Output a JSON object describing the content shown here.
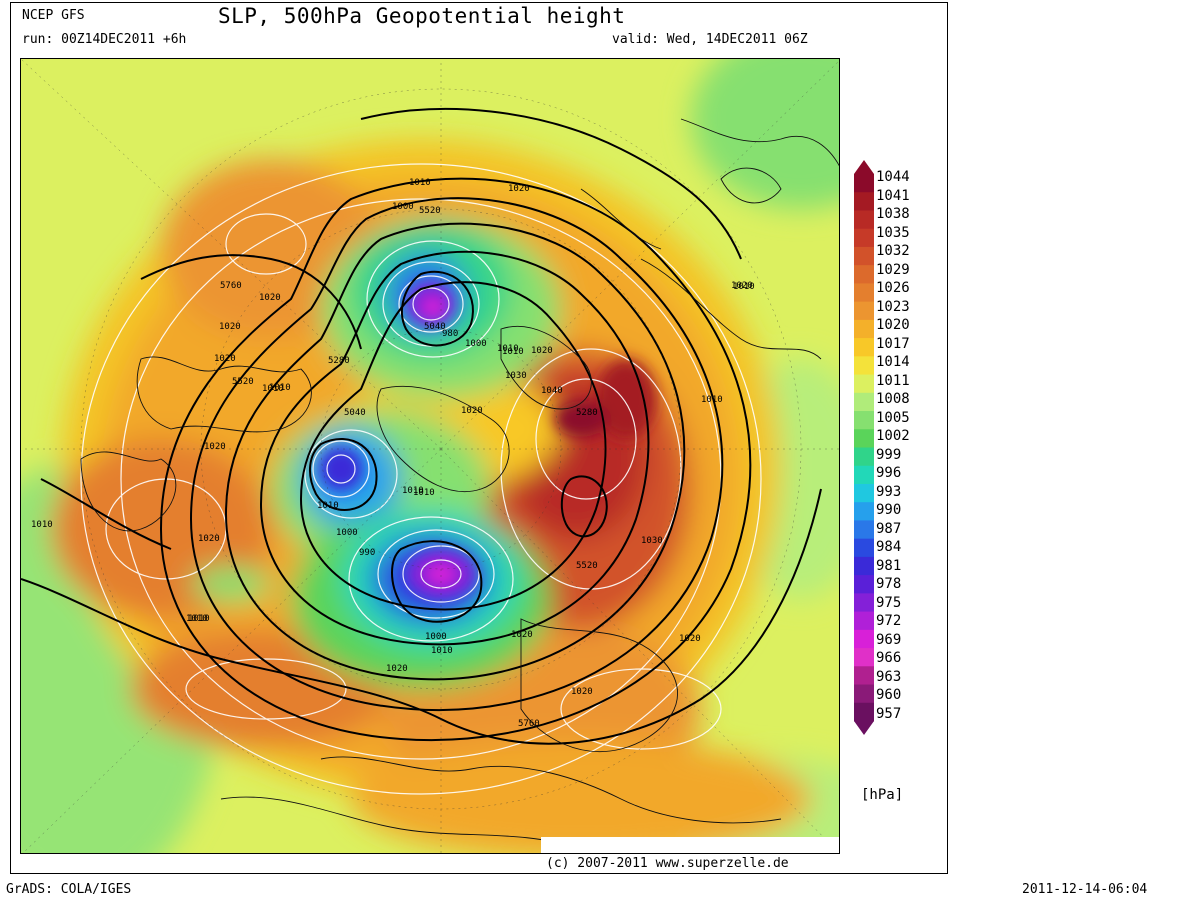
{
  "header": {
    "model": "NCEP GFS",
    "title": "SLP, 500hPa Geopotential height",
    "run": "run: 00Z14DEC2011 +6h",
    "valid": "valid: Wed, 14DEC2011 06Z"
  },
  "footer": {
    "copyright": "(c) 2007-2011 www.superzelle.de",
    "software": "GrADS: COLA/IGES",
    "timestamp": "2011-12-14-06:04"
  },
  "colorbar": {
    "unit": "[hPa]",
    "levels": [
      "1044",
      "1041",
      "1038",
      "1035",
      "1032",
      "1029",
      "1026",
      "1023",
      "1020",
      "1017",
      "1014",
      "1011",
      "1008",
      "1005",
      "1002",
      "999",
      "996",
      "993",
      "990",
      "987",
      "984",
      "981",
      "978",
      "975",
      "972",
      "969",
      "966",
      "963",
      "960",
      "957"
    ],
    "colors": [
      "#8b0a2a",
      "#a41a23",
      "#b82a25",
      "#c63a28",
      "#d2522a",
      "#dc6a2c",
      "#e47f2e",
      "#ec9530",
      "#f4b02a",
      "#f8c828",
      "#f4e23a",
      "#dcf060",
      "#b0ec7a",
      "#86e070",
      "#5ad45a",
      "#30d48a",
      "#22d8b8",
      "#20c8e0",
      "#26a0ec",
      "#2a78e8",
      "#2a4ae0",
      "#3a2ad8",
      "#5a20d8",
      "#8420d8",
      "#b020d8",
      "#d820d8",
      "#e030c8",
      "#b02090",
      "#8a1a78",
      "#6a1060"
    ]
  },
  "contour_labels": {
    "slp": [
      "1010",
      "1020",
      "1020",
      "1020",
      "1010",
      "1000",
      "980",
      "1000",
      "1010",
      "1020",
      "1030",
      "1040",
      "1020",
      "1010",
      "1010",
      "1000",
      "1010",
      "1020",
      "1030",
      "990",
      "1000",
      "1010",
      "1020",
      "1020",
      "1010",
      "1020",
      "1010",
      "1020",
      "1010",
      "1010",
      "1020",
      "1020",
      "1010",
      "1020",
      "1010",
      "1010"
    ],
    "z500": [
      "5520",
      "5760",
      "5280",
      "5520",
      "5040",
      "5040",
      "5280",
      "5520",
      "5760"
    ]
  }
}
